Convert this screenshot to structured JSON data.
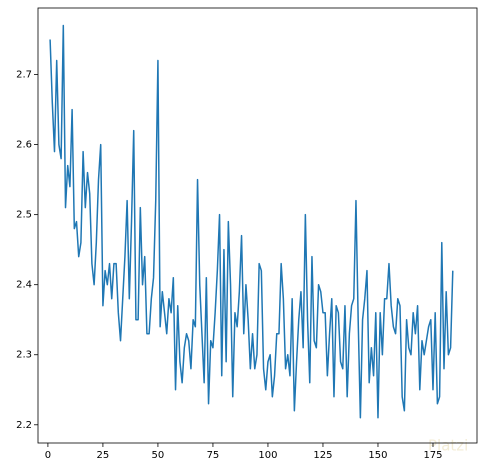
{
  "chart_data": {
    "type": "line",
    "x": [
      1,
      2,
      3,
      4,
      5,
      6,
      7,
      8,
      9,
      10,
      11,
      12,
      13,
      14,
      15,
      16,
      17,
      18,
      19,
      20,
      21,
      22,
      23,
      24,
      25,
      26,
      27,
      28,
      29,
      30,
      31,
      32,
      33,
      34,
      35,
      36,
      37,
      38,
      39,
      40,
      41,
      42,
      43,
      44,
      45,
      46,
      47,
      48,
      49,
      50,
      51,
      52,
      53,
      54,
      55,
      56,
      57,
      58,
      59,
      60,
      61,
      62,
      63,
      64,
      65,
      66,
      67,
      68,
      69,
      70,
      71,
      72,
      73,
      74,
      75,
      76,
      77,
      78,
      79,
      80,
      81,
      82,
      83,
      84,
      85,
      86,
      87,
      88,
      89,
      90,
      91,
      92,
      93,
      94,
      95,
      96,
      97,
      98,
      99,
      100,
      101,
      102,
      103,
      104,
      105,
      106,
      107,
      108,
      109,
      110,
      111,
      112,
      113,
      114,
      115,
      116,
      117,
      118,
      119,
      120,
      121,
      122,
      123,
      124,
      125,
      126,
      127,
      128,
      129,
      130,
      131,
      132,
      133,
      134,
      135,
      136,
      137,
      138,
      139,
      140,
      141,
      142,
      143,
      144,
      145,
      146,
      147,
      148,
      149,
      150,
      151,
      152,
      153,
      154,
      155,
      156,
      157,
      158,
      159,
      160,
      161,
      162,
      163,
      164,
      165,
      166,
      167,
      168,
      169,
      170,
      171,
      172,
      173,
      174,
      175,
      176,
      177,
      178,
      179,
      180,
      181,
      182,
      183,
      184
    ],
    "series": [
      {
        "color": "#1f77b4",
        "values": [
          2.75,
          2.66,
          2.59,
          2.72,
          2.6,
          2.58,
          2.77,
          2.51,
          2.57,
          2.54,
          2.65,
          2.48,
          2.49,
          2.44,
          2.46,
          2.59,
          2.51,
          2.56,
          2.53,
          2.43,
          2.4,
          2.46,
          2.55,
          2.6,
          2.37,
          2.42,
          2.4,
          2.43,
          2.38,
          2.43,
          2.43,
          2.36,
          2.32,
          2.38,
          2.44,
          2.52,
          2.38,
          2.49,
          2.62,
          2.35,
          2.35,
          2.51,
          2.4,
          2.44,
          2.33,
          2.33,
          2.38,
          2.41,
          2.52,
          2.72,
          2.34,
          2.39,
          2.36,
          2.33,
          2.38,
          2.36,
          2.41,
          2.25,
          2.37,
          2.29,
          2.26,
          2.31,
          2.33,
          2.32,
          2.28,
          2.35,
          2.34,
          2.55,
          2.4,
          2.33,
          2.26,
          2.41,
          2.23,
          2.32,
          2.31,
          2.36,
          2.42,
          2.5,
          2.27,
          2.45,
          2.29,
          2.49,
          2.4,
          2.24,
          2.36,
          2.34,
          2.39,
          2.47,
          2.33,
          2.4,
          2.35,
          2.28,
          2.33,
          2.28,
          2.3,
          2.43,
          2.42,
          2.28,
          2.25,
          2.29,
          2.3,
          2.24,
          2.27,
          2.33,
          2.33,
          2.43,
          2.38,
          2.28,
          2.3,
          2.27,
          2.38,
          2.22,
          2.29,
          2.35,
          2.39,
          2.31,
          2.5,
          2.35,
          2.26,
          2.44,
          2.32,
          2.31,
          2.4,
          2.39,
          2.36,
          2.36,
          2.27,
          2.33,
          2.38,
          2.24,
          2.37,
          2.36,
          2.29,
          2.28,
          2.37,
          2.24,
          2.33,
          2.37,
          2.38,
          2.52,
          2.35,
          2.21,
          2.35,
          2.38,
          2.42,
          2.26,
          2.31,
          2.27,
          2.36,
          2.21,
          2.36,
          2.3,
          2.38,
          2.38,
          2.43,
          2.37,
          2.34,
          2.33,
          2.38,
          2.37,
          2.24,
          2.22,
          2.35,
          2.31,
          2.3,
          2.36,
          2.33,
          2.37,
          2.25,
          2.32,
          2.3,
          2.32,
          2.34,
          2.35,
          2.25,
          2.36,
          2.23,
          2.24,
          2.46,
          2.28,
          2.39,
          2.3,
          2.31,
          2.42
        ]
      }
    ],
    "xlim": [
      -4.5,
      195
    ],
    "xticks": [
      0,
      25,
      50,
      75,
      100,
      125,
      150,
      175
    ],
    "ylim": [
      2.174,
      2.795
    ],
    "yticks": [
      2.2,
      2.3,
      2.4,
      2.5,
      2.6,
      2.7
    ],
    "watermark": "Platzi"
  }
}
